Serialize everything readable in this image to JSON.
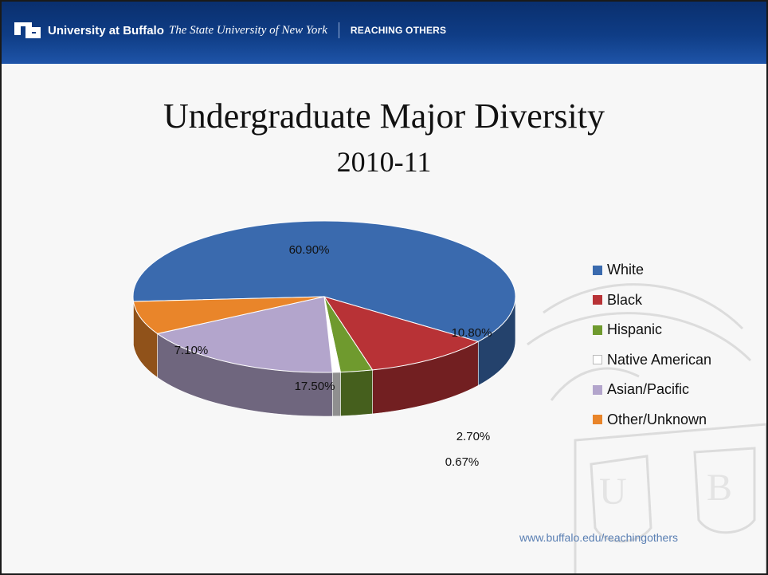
{
  "header": {
    "university_name": "University at Buffalo",
    "university_subtitle": "The State University of New York",
    "tagline": "REACHING OTHERS"
  },
  "slide": {
    "title": "Undergraduate Major Diversity",
    "subtitle": "2010-11"
  },
  "footer": {
    "url": "www.buffalo.edu/reachingothers"
  },
  "chart_data": {
    "type": "pie",
    "style": "3d",
    "title": "",
    "legend_position": "right",
    "categories": [
      "White",
      "Black",
      "Hispanic",
      "Native American",
      "Asian/Pacific",
      "Other/Unknown"
    ],
    "values": [
      60.9,
      10.8,
      2.7,
      0.67,
      17.5,
      7.1
    ],
    "data_labels": [
      "60.90%",
      "10.80%",
      "2.70%",
      "0.67%",
      "17.50%",
      "7.10%"
    ],
    "colors": [
      "#3a6aae",
      "#b83236",
      "#6f9a2e",
      "#ffffff",
      "#b3a5cc",
      "#e9852a"
    ]
  }
}
